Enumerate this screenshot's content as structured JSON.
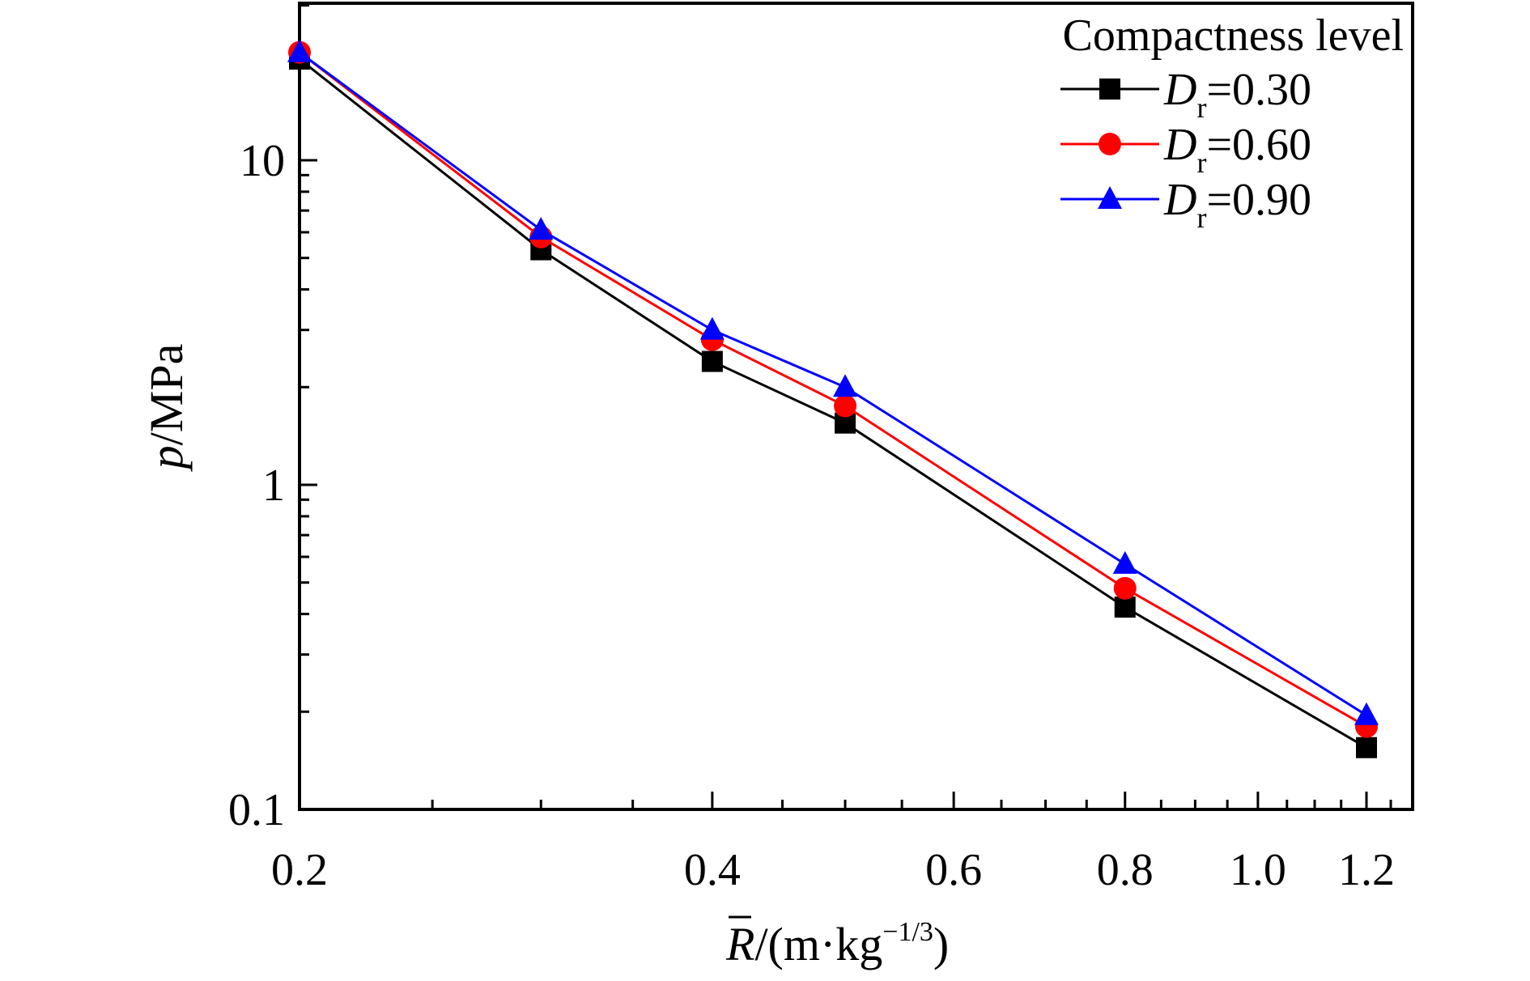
{
  "chart_data": {
    "type": "line",
    "x_scale": "log",
    "y_scale": "log",
    "xlim": [
      0.2,
      1.3
    ],
    "ylim": [
      0.1,
      30
    ],
    "x_tick_values": [
      0.2,
      0.4,
      0.6,
      0.8,
      1.0,
      1.2
    ],
    "x_tick_labels": [
      "0.2",
      "0.4",
      "0.6",
      "0.8",
      "1.0",
      "1.2"
    ],
    "y_tick_values": [
      0.1,
      1,
      10
    ],
    "y_tick_labels": [
      "0.1",
      "1",
      "10"
    ],
    "xlabel": {
      "symbol": "R",
      "overbar": true,
      "rest": "/(m·kg",
      "sup": "−1/3",
      "close": ")"
    },
    "ylabel": {
      "symbol": "p",
      "rest": "/MPa"
    },
    "legend": {
      "title": "Compactness level",
      "placement": "top-right"
    },
    "x": [
      0.2,
      0.3,
      0.4,
      0.5,
      0.8,
      1.2
    ],
    "series": [
      {
        "name_symbol": "D",
        "name_sub": "r",
        "name_value": "=0.30",
        "color": "#000000",
        "marker": "square",
        "values": [
          20.5,
          5.3,
          2.4,
          1.55,
          0.42,
          0.155
        ]
      },
      {
        "name_symbol": "D",
        "name_sub": "r",
        "name_value": "=0.60",
        "color": "#ff0000",
        "marker": "circle",
        "values": [
          21.5,
          5.8,
          2.8,
          1.75,
          0.48,
          0.18
        ]
      },
      {
        "name_symbol": "D",
        "name_sub": "r",
        "name_value": "=0.90",
        "color": "#0000ff",
        "marker": "triangle",
        "values": [
          21.5,
          6.1,
          3.0,
          2.0,
          0.57,
          0.195
        ]
      }
    ],
    "grid": false
  }
}
